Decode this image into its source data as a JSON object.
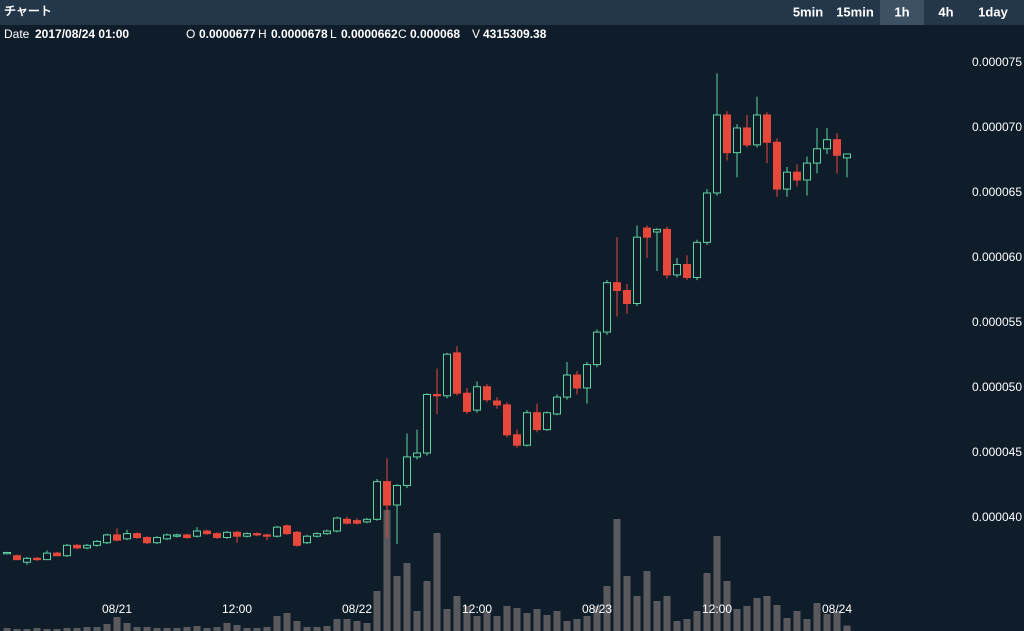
{
  "header": {
    "title": "チャート",
    "timeframes": [
      "5min",
      "15min",
      "1h",
      "4h",
      "1day"
    ],
    "active_timeframe": "1h"
  },
  "info": {
    "date_label": "Date",
    "date": "2017/08/24 01:00",
    "open_label": "O",
    "open": "0.0000677",
    "high_label": "H",
    "high": "0.0000678",
    "low_label": "L",
    "low": "0.0000662",
    "close_label": "C",
    "close": "0.000068",
    "volume_label": "V",
    "volume": "4315309.38"
  },
  "chart_data": {
    "type": "candlestick",
    "categories": [
      null,
      null,
      null,
      null,
      null,
      null,
      null,
      null,
      null,
      null,
      null,
      "08/21",
      null,
      null,
      null,
      null,
      null,
      null,
      null,
      null,
      null,
      null,
      null,
      "12:00",
      null,
      null,
      null,
      null,
      null,
      null,
      null,
      null,
      null,
      null,
      null,
      "08/22",
      null,
      null,
      null,
      null,
      null,
      null,
      null,
      null,
      null,
      null,
      null,
      "12:00",
      null,
      null,
      null,
      null,
      null,
      null,
      null,
      null,
      null,
      null,
      null,
      "08/23",
      null,
      null,
      null,
      null,
      null,
      null,
      null,
      null,
      null,
      null,
      null,
      "12:00",
      null,
      null,
      null,
      null,
      null,
      null,
      null,
      null,
      null,
      null,
      null,
      "08/24",
      null
    ],
    "open": [
      3.725e-05,
      3.71e-05,
      3.66e-05,
      3.69e-05,
      3.68e-05,
      3.73e-05,
      3.71e-05,
      3.79e-05,
      3.77e-05,
      3.79e-05,
      3.81e-05,
      3.87e-05,
      3.84e-05,
      3.88e-05,
      3.85e-05,
      3.81e-05,
      3.84e-05,
      3.86e-05,
      3.87e-05,
      3.86e-05,
      3.9e-05,
      3.88e-05,
      3.85e-05,
      3.89e-05,
      3.86e-05,
      3.88e-05,
      3.87e-05,
      3.86e-05,
      3.94e-05,
      3.89e-05,
      3.81e-05,
      3.86e-05,
      3.88e-05,
      3.9e-05,
      3.99e-05,
      3.98e-05,
      3.97e-05,
      3.99e-05,
      4.28e-05,
      4.1e-05,
      4.25e-05,
      4.47e-05,
      4.5e-05,
      4.95e-05,
      4.94e-05,
      5.27e-05,
      4.96e-05,
      4.83e-05,
      5.01e-05,
      4.9e-05,
      4.87e-05,
      4.64e-05,
      4.56e-05,
      4.81e-05,
      4.68e-05,
      4.8e-05,
      4.93e-05,
      5.1e-05,
      5e-05,
      5.18e-05,
      5.43e-05,
      5.81e-05,
      5.75e-05,
      5.65e-05,
      6.23e-05,
      6.2e-05,
      6.22e-05,
      5.87e-05,
      5.95e-05,
      5.85e-05,
      6.12e-05,
      6.5e-05,
      7.1e-05,
      6.81e-05,
      7e-05,
      6.87e-05,
      7.1e-05,
      6.89e-05,
      6.53e-05,
      6.66e-05,
      6.6e-05,
      6.73e-05,
      6.84e-05,
      6.91e-05,
      6.77e-05
    ],
    "high": [
      3.74e-05,
      3.72e-05,
      3.7e-05,
      3.7e-05,
      3.75e-05,
      3.74e-05,
      3.8e-05,
      3.8e-05,
      3.8e-05,
      3.83e-05,
      3.88e-05,
      3.92e-05,
      3.91e-05,
      3.89e-05,
      3.86e-05,
      3.86e-05,
      3.88e-05,
      3.88e-05,
      3.88e-05,
      3.93e-05,
      3.91e-05,
      3.89e-05,
      3.9e-05,
      3.9e-05,
      3.89e-05,
      3.89e-05,
      3.88e-05,
      3.94e-05,
      3.95e-05,
      3.9e-05,
      3.87e-05,
      3.89e-05,
      3.91e-05,
      4.01e-05,
      4.01e-05,
      4e-05,
      4e-05,
      4.3e-05,
      4.46e-05,
      4.26e-05,
      4.65e-05,
      4.68e-05,
      4.96e-05,
      5.15e-05,
      5.27e-05,
      5.32e-05,
      5e-05,
      5.05e-05,
      5.03e-05,
      4.93e-05,
      4.89e-05,
      4.68e-05,
      4.83e-05,
      4.88e-05,
      4.82e-05,
      4.95e-05,
      5.2e-05,
      5.13e-05,
      5.2e-05,
      5.45e-05,
      5.83e-05,
      6.16e-05,
      5.8e-05,
      6.25e-05,
      6.25e-05,
      6.23e-05,
      6.24e-05,
      6e-05,
      6.02e-05,
      6.14e-05,
      6.53e-05,
      7.42e-05,
      7.13e-05,
      7.03e-05,
      7.1e-05,
      7.24e-05,
      7.12e-05,
      6.92e-05,
      6.7e-05,
      6.72e-05,
      6.78e-05,
      7e-05,
      7e-05,
      6.96e-05,
      6.78e-05
    ],
    "low": [
      3.72e-05,
      3.68e-05,
      3.64e-05,
      3.67e-05,
      3.68e-05,
      3.71e-05,
      3.7e-05,
      3.76e-05,
      3.76e-05,
      3.78e-05,
      3.8e-05,
      3.82e-05,
      3.83e-05,
      3.84e-05,
      3.8e-05,
      3.8e-05,
      3.83e-05,
      3.85e-05,
      3.84e-05,
      3.85e-05,
      3.87e-05,
      3.84e-05,
      3.84e-05,
      3.81e-05,
      3.85e-05,
      3.86e-05,
      3.83e-05,
      3.85e-05,
      3.87e-05,
      3.78e-05,
      3.8e-05,
      3.85e-05,
      3.87e-05,
      3.89e-05,
      3.95e-05,
      3.95e-05,
      3.96e-05,
      3.98e-05,
      3.85e-05,
      3.8e-05,
      4.23e-05,
      4.45e-05,
      4.48e-05,
      4.8e-05,
      4.92e-05,
      4.94e-05,
      4.8e-05,
      4.81e-05,
      4.89e-05,
      4.84e-05,
      4.62e-05,
      4.54e-05,
      4.55e-05,
      4.66e-05,
      4.67e-05,
      4.79e-05,
      4.91e-05,
      4.95e-05,
      4.88e-05,
      5.16e-05,
      5.41e-05,
      5.55e-05,
      5.57e-05,
      5.63e-05,
      6e-05,
      5.9e-05,
      5.84e-05,
      5.85e-05,
      5.83e-05,
      5.83e-05,
      6.1e-05,
      6.48e-05,
      6.75e-05,
      6.62e-05,
      6.85e-05,
      6.85e-05,
      6.73e-05,
      6.47e-05,
      6.47e-05,
      6.55e-05,
      6.48e-05,
      6.65e-05,
      6.8e-05,
      6.65e-05,
      6.62e-05
    ],
    "close": [
      3.735e-05,
      3.68e-05,
      3.69e-05,
      3.68e-05,
      3.73e-05,
      3.71e-05,
      3.79e-05,
      3.77e-05,
      3.79e-05,
      3.82e-05,
      3.87e-05,
      3.83e-05,
      3.88e-05,
      3.85e-05,
      3.81e-05,
      3.85e-05,
      3.87e-05,
      3.87e-05,
      3.85e-05,
      3.9e-05,
      3.88e-05,
      3.85e-05,
      3.89e-05,
      3.86e-05,
      3.88e-05,
      3.87e-05,
      3.86e-05,
      3.93e-05,
      3.88e-05,
      3.79e-05,
      3.86e-05,
      3.88e-05,
      3.9e-05,
      4e-05,
      3.96e-05,
      3.96e-05,
      3.99e-05,
      4.28e-05,
      4.1e-05,
      4.25e-05,
      4.47e-05,
      4.5e-05,
      4.95e-05,
      4.94e-05,
      5.26e-05,
      4.96e-05,
      4.82e-05,
      5.01e-05,
      4.91e-05,
      4.87e-05,
      4.64e-05,
      4.56e-05,
      4.81e-05,
      4.68e-05,
      4.81e-05,
      4.93e-05,
      5.1e-05,
      5e-05,
      5.18e-05,
      5.43e-05,
      5.81e-05,
      5.75e-05,
      5.65e-05,
      6.16e-05,
      6.16e-05,
      6.22e-05,
      5.87e-05,
      5.95e-05,
      5.85e-05,
      6.12e-05,
      6.5e-05,
      7.1e-05,
      6.81e-05,
      7e-05,
      6.87e-05,
      7.1e-05,
      6.89e-05,
      6.53e-05,
      6.66e-05,
      6.6e-05,
      6.73e-05,
      6.84e-05,
      6.91e-05,
      6.79e-05,
      6.8e-05
    ],
    "volume": [
      2400000,
      1600000,
      1600000,
      2400000,
      1600000,
      1600000,
      2400000,
      2400000,
      3200000,
      3200000,
      5600000,
      11200000,
      6400000,
      3200000,
      3200000,
      2400000,
      2400000,
      2400000,
      3200000,
      4000000,
      2400000,
      3200000,
      6400000,
      4800000,
      2400000,
      2400000,
      3200000,
      12000000,
      14400000,
      8000000,
      3200000,
      3200000,
      4000000,
      9600000,
      9600000,
      8000000,
      6400000,
      32000000,
      96800000,
      44000000,
      54400000,
      16000000,
      40000000,
      78400000,
      17600000,
      28000000,
      20000000,
      12000000,
      16000000,
      12000000,
      20000000,
      18400000,
      14400000,
      17600000,
      12800000,
      16000000,
      8000000,
      9600000,
      12000000,
      20000000,
      36000000,
      89600000,
      44000000,
      28000000,
      48000000,
      24000000,
      28000000,
      8000000,
      9600000,
      16000000,
      46400000,
      76000000,
      40000000,
      17600000,
      20000000,
      26400000,
      28000000,
      20800000,
      10400000,
      16000000,
      9600000,
      22400000,
      13600000,
      16000000,
      4315309.38
    ],
    "up_color": "#5fd3a0",
    "down_color": "#e8473b",
    "volume_color": "#5a5a5e",
    "ylim": [
      3.131e-05,
      7.792e-05
    ],
    "yticks": [
      {
        "value": 4e-05,
        "label": "0.000040"
      },
      {
        "value": 4.5e-05,
        "label": "0.000045"
      },
      {
        "value": 5e-05,
        "label": "0.000050"
      },
      {
        "value": 5.5e-05,
        "label": "0.000055"
      },
      {
        "value": 6e-05,
        "label": "0.000060"
      },
      {
        "value": 6.5e-05,
        "label": "0.000065"
      },
      {
        "value": 7e-05,
        "label": "0.000070"
      },
      {
        "value": 7.5e-05,
        "label": "0.000075"
      }
    ]
  }
}
